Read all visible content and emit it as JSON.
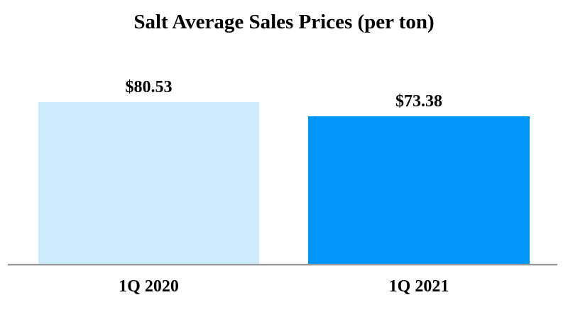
{
  "chart_data": {
    "type": "bar",
    "title": "Salt Average Sales Prices (per ton)",
    "categories": [
      "1Q 2020",
      "1Q 2021"
    ],
    "values": [
      80.53,
      73.38
    ],
    "value_labels": [
      "$80.53",
      "$73.38"
    ],
    "bar_colors": [
      "#cdebfd",
      "#0095fb"
    ],
    "axis_color": "#9a9a9a",
    "ylim": [
      0,
      80.53
    ],
    "xlabel": "",
    "ylabel": "",
    "grid": false,
    "legend": false,
    "background_color": "#ffffff",
    "text_color": "#000000"
  }
}
